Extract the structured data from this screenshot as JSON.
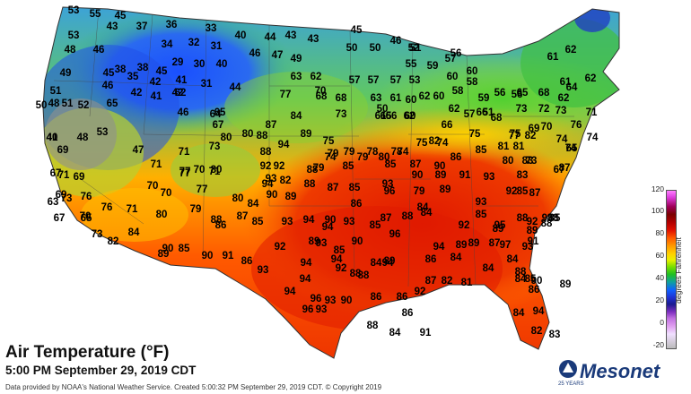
{
  "title": "Air Temperature (°F)",
  "subtitle": "5:00 PM September 29, 2019 CDT",
  "credit": "Data provided by NOAA's National Weather Service. Created 5:00:32 PM September 29, 2019 CDT. © Copyright 2019",
  "legend": {
    "unit": "degrees Fahrenheit",
    "ticks": [
      "120",
      "100",
      "80",
      "60",
      "40",
      "20",
      "0",
      "-20"
    ]
  },
  "logo": {
    "name": "Mesonet",
    "badge": "25 YEARS"
  },
  "readings": [
    "53",
    "55",
    "45",
    "43",
    "37",
    "36",
    "33",
    "53",
    "34",
    "32",
    "31",
    "40",
    "44",
    "43",
    "43",
    "45",
    "46",
    "50",
    "50",
    "51",
    "48",
    "46",
    "29",
    "30",
    "40",
    "46",
    "47",
    "49",
    "52",
    "57",
    "60",
    "38",
    "38",
    "45",
    "41",
    "55",
    "59",
    "56",
    "49",
    "45",
    "35",
    "42",
    "31",
    "44",
    "63",
    "62",
    "70",
    "57",
    "57",
    "57",
    "53",
    "60",
    "58",
    "58",
    "61",
    "62",
    "51",
    "51",
    "46",
    "42",
    "41",
    "62",
    "42",
    "68",
    "68",
    "60",
    "65",
    "59",
    "68",
    "61",
    "62",
    "50",
    "48",
    "52",
    "65",
    "77",
    "84",
    "63",
    "61",
    "62",
    "50",
    "56",
    "64",
    "62",
    "51",
    "56",
    "73",
    "61",
    "65",
    "60",
    "60",
    "80",
    "46",
    "64",
    "65",
    "87",
    "66",
    "62",
    "62",
    "57",
    "66",
    "66",
    "68",
    "73",
    "72",
    "71",
    "53",
    "41",
    "48",
    "67",
    "80",
    "89",
    "73",
    "76",
    "70",
    "75",
    "75",
    "69",
    "77",
    "74",
    "40",
    "69",
    "94",
    "88",
    "75",
    "79",
    "78",
    "74",
    "75",
    "78",
    "74",
    "82",
    "82",
    "81",
    "74",
    "47",
    "71",
    "73",
    "88",
    "92",
    "92",
    "79",
    "79",
    "74",
    "79",
    "80",
    "85",
    "81",
    "74",
    "65",
    "67",
    "69",
    "71",
    "77",
    "71",
    "80",
    "94",
    "88",
    "85",
    "87",
    "90",
    "86",
    "85",
    "80",
    "73",
    "67",
    "71",
    "70",
    "77",
    "70",
    "93",
    "82",
    "83",
    "90",
    "89",
    "89",
    "91",
    "93",
    "83",
    "87",
    "70",
    "76",
    "73",
    "63",
    "77",
    "80",
    "84",
    "90",
    "89",
    "88",
    "87",
    "85",
    "93",
    "96",
    "79",
    "92",
    "93",
    "85",
    "87",
    "69",
    "70",
    "76",
    "67",
    "71",
    "80",
    "79",
    "86",
    "88",
    "87",
    "85",
    "93",
    "94",
    "90",
    "95",
    "93",
    "86",
    "87",
    "84",
    "73",
    "65",
    "82",
    "84",
    "89",
    "90",
    "85",
    "90",
    "91",
    "86",
    "93",
    "93",
    "94",
    "93",
    "88",
    "84",
    "92",
    "85",
    "89",
    "88",
    "89",
    "88",
    "85",
    "91",
    "93",
    "92",
    "94",
    "94",
    "92",
    "90",
    "89",
    "85",
    "85",
    "96",
    "94",
    "94",
    "89",
    "89",
    "87",
    "97",
    "92",
    "88",
    "84",
    "89",
    "94",
    "88",
    "88",
    "84",
    "89",
    "86",
    "84",
    "81",
    "85",
    "94",
    "96",
    "93",
    "90",
    "86",
    "86",
    "92",
    "87",
    "82",
    "84",
    "84",
    "88",
    "90",
    "86",
    "94",
    "96",
    "93",
    "86",
    "88",
    "84",
    "91",
    "82",
    "83",
    "84"
  ]
}
